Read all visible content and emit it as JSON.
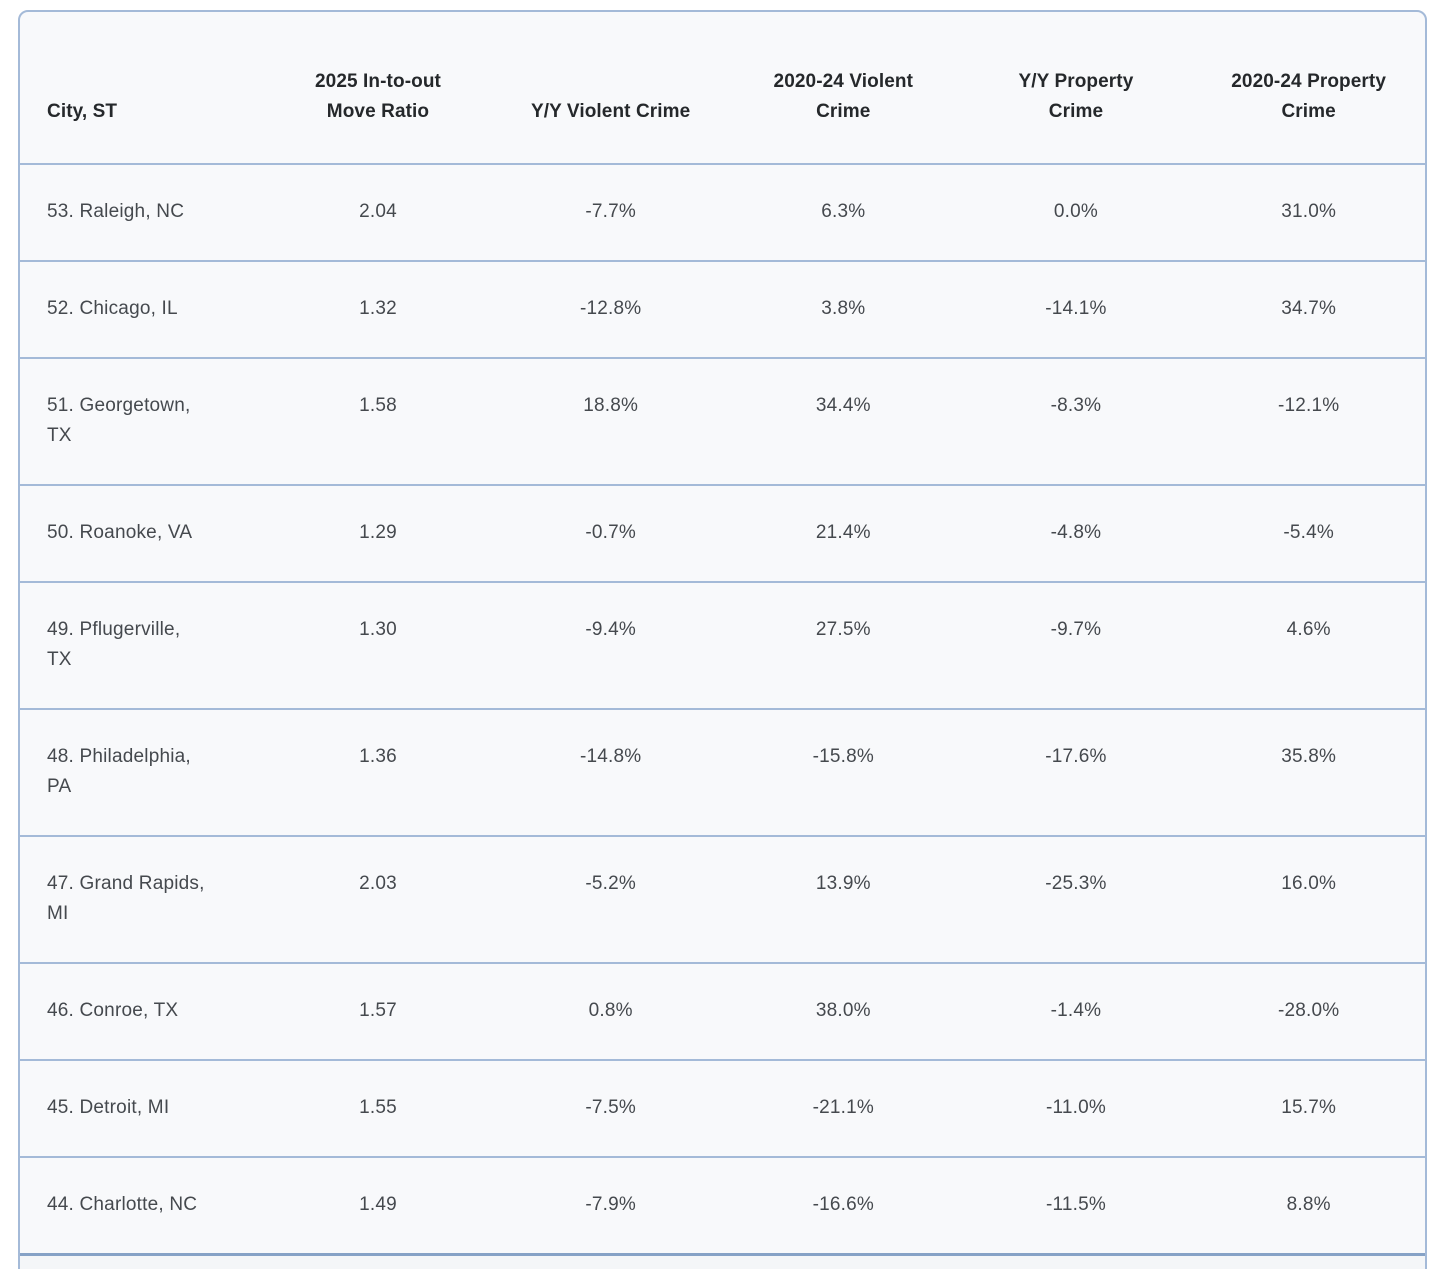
{
  "colors": {
    "page_background": "#ffffff",
    "card_background": "#f8f9fb",
    "border_blue": "#a4bad8",
    "bottom_divider_blue": "#86a2c6",
    "header_text": "#25282b",
    "cell_text": "#45494e"
  },
  "table": {
    "columns": [
      {
        "key": "city-st",
        "label": "City, ST"
      },
      {
        "key": "move-ratio-2025",
        "label": "2025 In-to-out\nMove Ratio"
      },
      {
        "key": "yy-violent-crime",
        "label": "Y/Y Violent Crime"
      },
      {
        "key": "violent-crime-2020-24",
        "label": "2020-24 Violent\nCrime"
      },
      {
        "key": "yy-property-crime",
        "label": "Y/Y Property\nCrime"
      },
      {
        "key": "property-crime-2020-24",
        "label": "2020-24 Property\nCrime"
      }
    ],
    "rows": [
      [
        "53. Raleigh, NC",
        "2.04",
        "-7.7%",
        "6.3%",
        "0.0%",
        "31.0%"
      ],
      [
        "52. Chicago, IL",
        "1.32",
        "-12.8%",
        "3.8%",
        "-14.1%",
        "34.7%"
      ],
      [
        "51. Georgetown,\nTX",
        "1.58",
        "18.8%",
        "34.4%",
        "-8.3%",
        "-12.1%"
      ],
      [
        "50. Roanoke, VA",
        "1.29",
        "-0.7%",
        "21.4%",
        "-4.8%",
        "-5.4%"
      ],
      [
        "49. Pflugerville,\nTX",
        "1.30",
        "-9.4%",
        "27.5%",
        "-9.7%",
        "4.6%"
      ],
      [
        "48. Philadelphia,\nPA",
        "1.36",
        "-14.8%",
        "-15.8%",
        "-17.6%",
        "35.8%"
      ],
      [
        "47. Grand Rapids,\nMI",
        "2.03",
        "-5.2%",
        "13.9%",
        "-25.3%",
        "16.0%"
      ],
      [
        "46. Conroe, TX",
        "1.57",
        "0.8%",
        "38.0%",
        "-1.4%",
        "-28.0%"
      ],
      [
        "45. Detroit, MI",
        "1.55",
        "-7.5%",
        "-21.1%",
        "-11.0%",
        "15.7%"
      ],
      [
        "44. Charlotte, NC",
        "1.49",
        "-7.9%",
        "-16.6%",
        "-11.5%",
        "8.8%"
      ]
    ]
  }
}
